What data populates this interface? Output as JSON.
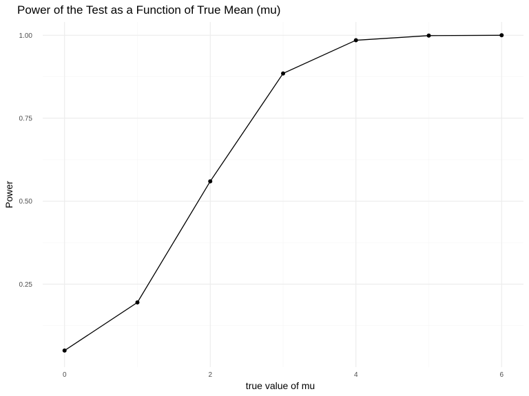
{
  "chart_data": {
    "type": "line",
    "title": "Power of the Test as a Function of True Mean (mu)",
    "xlabel": "true value of mu",
    "ylabel": "Power",
    "x": [
      0,
      1,
      2,
      3,
      4,
      5,
      6
    ],
    "series": [
      {
        "values": [
          0.05,
          0.195,
          0.56,
          0.885,
          0.985,
          0.999,
          1.0
        ]
      }
    ],
    "xlim": [
      -0.3,
      6.3
    ],
    "ylim": [
      0.0,
      1.04
    ],
    "xticks": [
      0,
      2,
      4,
      6
    ],
    "xtick_labels": [
      "0",
      "2",
      "4",
      "6"
    ],
    "yticks": [
      0.25,
      0.5,
      0.75,
      1.0
    ],
    "ytick_labels": [
      "0.25",
      "0.50",
      "0.75",
      "1.00"
    ],
    "grid": true,
    "markers": true,
    "colors": {
      "line": "#000000",
      "grid_major": "#ebebeb",
      "grid_minor": "#f5f5f5",
      "tick_text": "#4d4d4d"
    }
  }
}
